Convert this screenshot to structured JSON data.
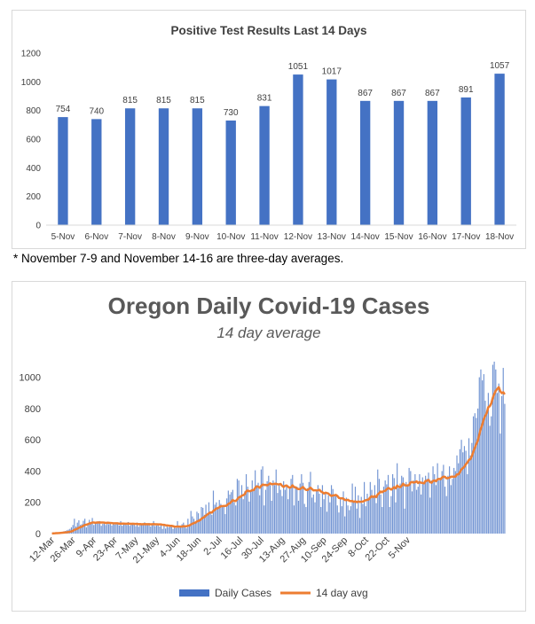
{
  "footnote": "* November 7-9 and November 14-16 are three-day averages.",
  "chart_data": [
    {
      "type": "bar",
      "title": "Positive Test Results Last 14 Days",
      "categories": [
        "5-Nov",
        "6-Nov",
        "7-Nov",
        "8-Nov",
        "9-Nov",
        "10-Nov",
        "11-Nov",
        "12-Nov",
        "13-Nov",
        "14-Nov",
        "15-Nov",
        "16-Nov",
        "17-Nov",
        "18-Nov"
      ],
      "values": [
        754,
        740,
        815,
        815,
        815,
        730,
        831,
        1051,
        1017,
        867,
        867,
        867,
        891,
        1057
      ],
      "y_ticks": [
        "0",
        "200",
        "400",
        "600",
        "800",
        "1000",
        "1200"
      ],
      "ylim": [
        0,
        1200
      ],
      "data_labels": true,
      "grid": false,
      "bar_color": "#4472c4"
    },
    {
      "type": "bar",
      "title": "Oregon Daily Covid-19 Cases",
      "subtitle": "14 day average",
      "x_tick_labels": [
        "12-Mar",
        "26-Mar",
        "9-Apr",
        "23-Apr",
        "7-May",
        "21-May",
        "4-Jun",
        "18-Jun",
        "2-Jul",
        "16-Jul",
        "30-Jul",
        "13-Aug",
        "27-Aug",
        "10-Sep",
        "24-Sep",
        "8-Oct",
        "22-Oct",
        "5-Nov"
      ],
      "y_ticks": [
        "0",
        "200",
        "400",
        "600",
        "800",
        "1000"
      ],
      "ylim": [
        0,
        1100
      ],
      "grid": false,
      "legend_position": "bottom",
      "series": [
        {
          "name": "Daily Cases",
          "kind": "bar",
          "color": "#4472c4",
          "values": [
            1,
            2,
            3,
            5,
            5,
            7,
            9,
            11,
            15,
            17,
            21,
            25,
            30,
            40,
            55,
            95,
            45,
            70,
            85,
            55,
            60,
            82,
            95,
            40,
            65,
            88,
            60,
            100,
            55,
            65,
            72,
            78,
            80,
            50,
            62,
            75,
            55,
            68,
            60,
            74,
            52,
            72,
            58,
            65,
            70,
            52,
            80,
            50,
            63,
            68,
            55,
            74,
            50,
            62,
            62,
            66,
            48,
            70,
            44,
            58,
            62,
            60,
            72,
            58,
            56,
            68,
            45,
            62,
            80,
            48,
            52,
            55,
            45,
            56,
            30,
            58,
            32,
            45,
            40,
            45,
            48,
            30,
            42,
            35,
            80,
            38,
            42,
            60,
            70,
            45,
            35,
            95,
            55,
            145,
            110,
            95,
            75,
            140,
            130,
            95,
            170,
            165,
            120,
            185,
            130,
            200,
            140,
            120,
            275,
            185,
            200,
            160,
            215,
            190,
            175,
            180,
            125,
            225,
            275,
            250,
            265,
            280,
            200,
            180,
            350,
            340,
            240,
            310,
            220,
            270,
            380,
            300,
            205,
            275,
            340,
            280,
            405,
            310,
            325,
            245,
            410,
            430,
            180,
            280,
            335,
            370,
            310,
            210,
            340,
            310,
            410,
            260,
            320,
            280,
            240,
            335,
            280,
            310,
            220,
            290,
            350,
            375,
            180,
            295,
            300,
            210,
            320,
            380,
            325,
            190,
            170,
            290,
            330,
            395,
            230,
            250,
            200,
            275,
            310,
            255,
            170,
            310,
            220,
            255,
            140,
            245,
            200,
            310,
            285,
            250,
            240,
            180,
            135,
            220,
            175,
            270,
            110,
            230,
            180,
            150,
            175,
            320,
            205,
            300,
            160,
            245,
            100,
            235,
            190,
            330,
            175,
            255,
            225,
            330,
            280,
            235,
            310,
            195,
            410,
            350,
            250,
            170,
            300,
            340,
            315,
            375,
            170,
            240,
            380,
            355,
            200,
            450,
            290,
            320,
            370,
            360,
            160,
            330,
            310,
            420,
            400,
            270,
            340,
            380,
            280,
            300,
            380,
            250,
            360,
            320,
            370,
            350,
            390,
            230,
            340,
            430,
            380,
            310,
            450,
            340,
            350,
            400,
            440,
            300,
            240,
            370,
            430,
            310,
            350,
            420,
            400,
            500,
            450,
            540,
            600,
            520,
            560,
            530,
            380,
            610,
            500,
            580,
            750,
            770,
            740,
            800,
            1000,
            1050,
            980,
            1020,
            850,
            780,
            900,
            690,
            750,
            1080,
            1100,
            1050,
            900,
            960,
            640,
            880,
            1060,
            830
          ]
        },
        {
          "name": "14 day avg",
          "kind": "line",
          "color": "#ed7d31"
        }
      ]
    }
  ]
}
